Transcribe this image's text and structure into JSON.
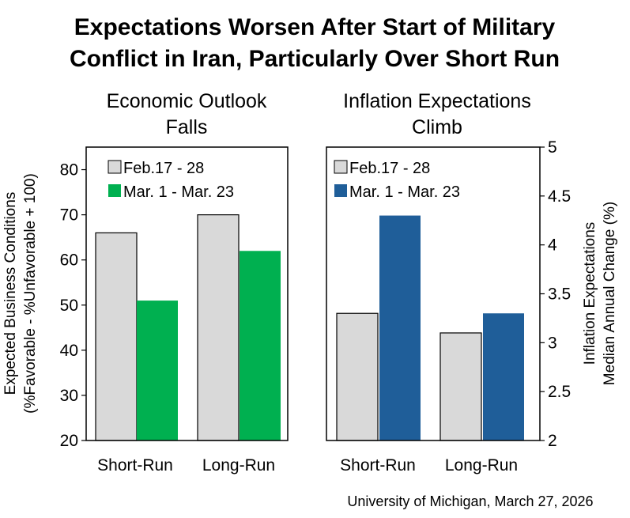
{
  "title_lines": [
    "Expectations Worsen After Start of Military",
    "Conflict in Iran, Particularly Over Short Run"
  ],
  "source": "University of Michigan, March 27, 2026",
  "colors": {
    "feb": "#d9d9d9",
    "mar_left": "#00b050",
    "mar_right": "#1f5e99",
    "outline": "#000000"
  },
  "chart_data": [
    {
      "type": "bar",
      "title_lines": [
        "Economic Outlook",
        "Falls"
      ],
      "categories": [
        "Short-Run",
        "Long-Run"
      ],
      "series": [
        {
          "name": "Feb.17 - 28",
          "values": [
            66,
            70
          ]
        },
        {
          "name": "Mar. 1 - Mar. 23",
          "values": [
            51,
            62
          ]
        }
      ],
      "ylabel_lines": [
        "Expected Business Conditions",
        "(%Favorable - %Unfavorable + 100)"
      ],
      "ylim": [
        20,
        85
      ],
      "yticks": [
        "20",
        "30",
        "40",
        "50",
        "60",
        "70",
        "80"
      ],
      "axis_side": "left",
      "legend_position": "top-left"
    },
    {
      "type": "bar",
      "title_lines": [
        "Inflation Expectations",
        "Climb"
      ],
      "categories": [
        "Short-Run",
        "Long-Run"
      ],
      "series": [
        {
          "name": "Feb.17 - 28",
          "values": [
            3.3,
            3.1
          ]
        },
        {
          "name": "Mar. 1 - Mar. 23",
          "values": [
            4.3,
            3.3
          ]
        }
      ],
      "ylabel_lines": [
        "Inflation Expectations",
        "Median Annual Change (%)"
      ],
      "ylim": [
        2,
        5
      ],
      "yticks": [
        "2",
        "2.5",
        "3",
        "3.5",
        "4",
        "4.5",
        "5"
      ],
      "axis_side": "right",
      "legend_position": "top-left"
    }
  ]
}
